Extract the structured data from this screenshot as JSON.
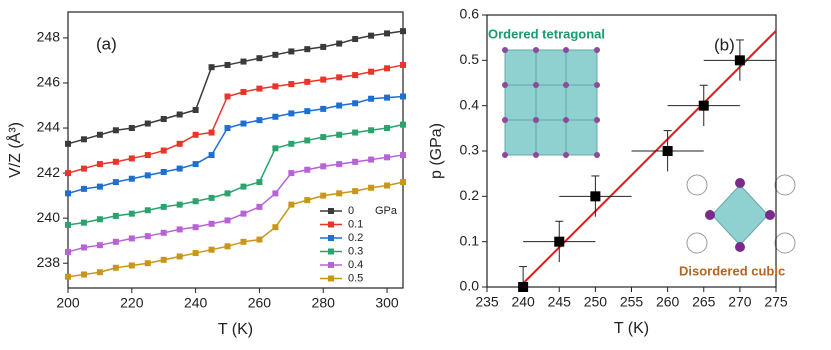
{
  "chart_data": [
    {
      "type": "line",
      "label": "(a)",
      "xlabel": "T (K)",
      "ylabel": "V/Z (Å³)",
      "xlim": [
        200,
        305
      ],
      "ylim": [
        236.9,
        249.15
      ],
      "xticks": [
        200,
        220,
        240,
        260,
        280,
        300
      ],
      "yticks": [
        238,
        240,
        242,
        244,
        246,
        248
      ],
      "legend_unit": "GPa",
      "x": [
        200,
        205,
        210,
        215,
        220,
        225,
        230,
        235,
        240,
        245,
        250,
        255,
        260,
        265,
        270,
        275,
        280,
        285,
        290,
        295,
        300,
        305
      ],
      "series": [
        {
          "name": "0",
          "color": "#3a3a3a",
          "values": [
            243.3,
            243.5,
            243.7,
            243.9,
            244.0,
            244.2,
            244.4,
            244.6,
            244.8,
            246.7,
            246.8,
            246.95,
            247.1,
            247.25,
            247.4,
            247.5,
            247.6,
            247.75,
            247.95,
            248.1,
            248.2,
            248.3
          ]
        },
        {
          "name": "0.1",
          "color": "#e8352b",
          "values": [
            242.0,
            242.2,
            242.4,
            242.5,
            242.65,
            242.8,
            243.0,
            243.3,
            243.7,
            243.8,
            245.4,
            245.6,
            245.75,
            245.85,
            245.95,
            246.05,
            246.15,
            246.25,
            246.35,
            246.5,
            246.65,
            246.8
          ]
        },
        {
          "name": "0.2",
          "color": "#1f6fd1",
          "values": [
            241.1,
            241.3,
            241.4,
            241.6,
            241.75,
            241.9,
            242.05,
            242.2,
            242.4,
            242.8,
            244.0,
            244.2,
            244.35,
            244.5,
            244.65,
            244.75,
            244.85,
            245.0,
            245.1,
            245.3,
            245.35,
            245.4
          ]
        },
        {
          "name": "0.3",
          "color": "#2ca36e",
          "values": [
            239.7,
            239.8,
            239.95,
            240.1,
            240.2,
            240.35,
            240.5,
            240.6,
            240.75,
            240.9,
            241.1,
            241.4,
            241.6,
            243.1,
            243.3,
            243.45,
            243.6,
            243.7,
            243.8,
            243.9,
            244.0,
            244.15
          ]
        },
        {
          "name": "0.4",
          "color": "#b763d6",
          "values": [
            238.5,
            238.7,
            238.8,
            238.95,
            239.1,
            239.2,
            239.35,
            239.5,
            239.6,
            239.75,
            239.9,
            240.2,
            240.5,
            241.1,
            242.0,
            242.15,
            242.3,
            242.4,
            242.5,
            242.6,
            242.7,
            242.8
          ]
        },
        {
          "name": "0.5",
          "color": "#c8961b",
          "values": [
            237.4,
            237.5,
            237.6,
            237.8,
            237.9,
            238.0,
            238.15,
            238.3,
            238.45,
            238.6,
            238.75,
            238.95,
            239.05,
            239.6,
            240.6,
            240.8,
            241.0,
            241.1,
            241.2,
            241.35,
            241.45,
            241.6
          ]
        }
      ]
    },
    {
      "type": "scatter",
      "label": "(b)",
      "xlabel": "T (K)",
      "ylabel": "p (GPa)",
      "xlim": [
        235,
        275
      ],
      "ylim": [
        0,
        0.6
      ],
      "xticks": [
        235,
        240,
        245,
        250,
        255,
        260,
        265,
        270,
        275
      ],
      "yticks": [
        {
          "value": 0,
          "label": "0.0"
        },
        0.1,
        0.2,
        0.3,
        0.4,
        0.5,
        0.6
      ],
      "x": [
        240,
        245,
        250,
        260,
        265,
        270
      ],
      "values": [
        0.0,
        0.1,
        0.2,
        0.3,
        0.4,
        0.5
      ],
      "xerr": [
        5,
        5,
        5,
        5,
        5,
        5
      ],
      "yerr": [
        0.045,
        0.045,
        0.045,
        0.045,
        0.045,
        0.045
      ],
      "color": "#000000",
      "fit": {
        "x": [
          239.5,
          275
        ],
        "y": [
          0,
          0.565
        ],
        "color": "#e31a1c"
      },
      "annotations": [
        {
          "text": "Ordered tetragonal",
          "color": "#1a9a6c"
        },
        {
          "text": "Disordered cubic",
          "color": "#b5651d"
        }
      ]
    }
  ]
}
